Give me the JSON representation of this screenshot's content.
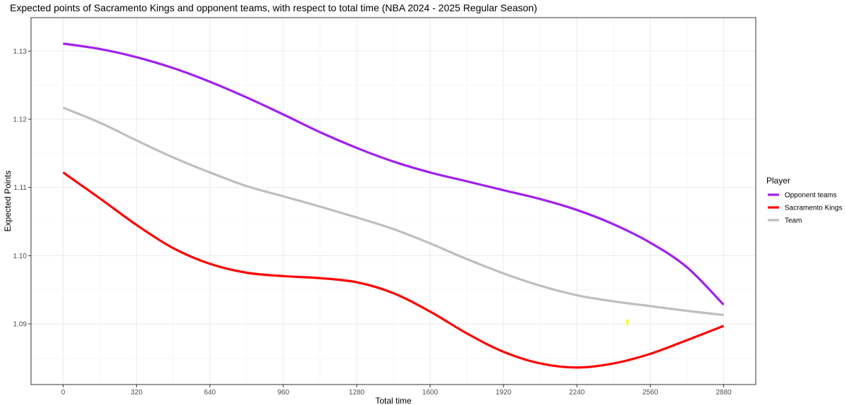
{
  "chart_data": {
    "type": "line",
    "title": "Expected points of Sacramento Kings and opponent teams, with respect to total time (NBA 2024 - 2025 Regular Season)",
    "xlabel": "Total time",
    "ylabel": "Expected Points",
    "xlim": [
      -140,
      3020
    ],
    "ylim": [
      1.0811,
      1.1349
    ],
    "x_ticks": [
      0,
      320,
      640,
      960,
      1280,
      1600,
      1920,
      2240,
      2560,
      2880
    ],
    "y_ticks": [
      1.09,
      1.1,
      1.11,
      1.12,
      1.13
    ],
    "y_tick_labels": [
      "1.09",
      "1.10",
      "1.11",
      "1.12",
      "1.13"
    ],
    "grid": true,
    "legend": {
      "title": "Player",
      "position": "right"
    },
    "series": [
      {
        "name": "Opponent teams",
        "color": "#a020f0",
        "x": [
          0,
          160,
          320,
          480,
          640,
          800,
          960,
          1120,
          1280,
          1440,
          1600,
          1760,
          1920,
          2080,
          2240,
          2400,
          2560,
          2720,
          2880
        ],
        "y": [
          1.1311,
          1.1303,
          1.1291,
          1.1275,
          1.1255,
          1.1232,
          1.1207,
          1.1181,
          1.1158,
          1.1138,
          1.1122,
          1.1109,
          1.1096,
          1.1083,
          1.1067,
          1.1046,
          1.1019,
          1.0983,
          1.0928
        ]
      },
      {
        "name": "Sacramento Kings",
        "color": "#ff0000",
        "x": [
          0,
          160,
          320,
          480,
          640,
          800,
          960,
          1120,
          1280,
          1440,
          1600,
          1760,
          1920,
          2080,
          2240,
          2400,
          2560,
          2720,
          2880
        ],
        "y": [
          1.1122,
          1.1084,
          1.1045,
          1.1011,
          1.0988,
          1.0975,
          1.097,
          1.0967,
          1.0961,
          1.0945,
          1.0918,
          1.0886,
          1.0859,
          1.0842,
          1.0836,
          1.0842,
          1.0856,
          1.0876,
          1.0897
        ]
      },
      {
        "name": "Team",
        "color": "#bebebe",
        "x": [
          0,
          160,
          320,
          480,
          640,
          800,
          960,
          1120,
          1280,
          1440,
          1600,
          1760,
          1920,
          2080,
          2240,
          2400,
          2560,
          2720,
          2880
        ],
        "y": [
          1.1217,
          1.1195,
          1.1169,
          1.1144,
          1.1122,
          1.1102,
          1.1087,
          1.1072,
          1.1056,
          1.1039,
          1.1018,
          1.0995,
          1.0974,
          1.0956,
          1.0942,
          1.0933,
          1.0926,
          1.0919,
          1.0913
        ]
      }
    ],
    "annotations": [
      {
        "type": "segment",
        "color": "#ffff00",
        "x": 2460,
        "y": [
          1.0898,
          1.0907
        ]
      }
    ]
  }
}
